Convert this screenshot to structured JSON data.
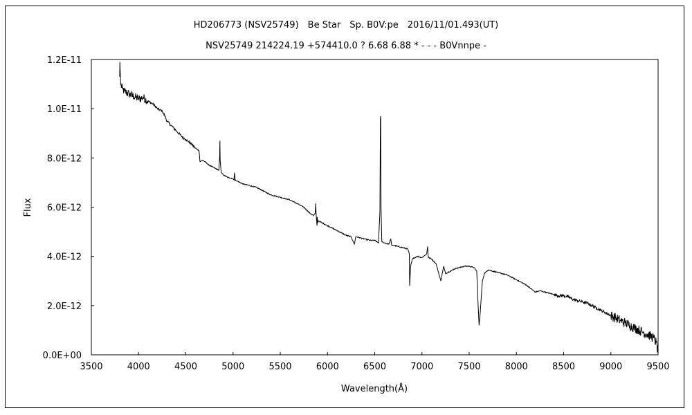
{
  "chart_data": {
    "type": "line",
    "title": "HD206773 (NSV25749)　Be Star　Sp. B0V:pe　2016/11/01.493(UT)",
    "subtitle": "NSV25749 214224.19 +574410.0 ? 6.68 6.88 * - - - B0Vnnpe -",
    "xlabel": "Wavelength(Å)",
    "ylabel": "Flux",
    "xlim": [
      3500,
      9500
    ],
    "ylim": [
      0,
      1.2e-11
    ],
    "x_ticks": [
      3500,
      4000,
      4500,
      5000,
      5500,
      6000,
      6500,
      7000,
      7500,
      8000,
      8500,
      9000,
      9500
    ],
    "x_tick_labels": [
      "3500",
      "4000",
      "4500",
      "5000",
      "5500",
      "6000",
      "6500",
      "7000",
      "7500",
      "8000",
      "8500",
      "9000",
      "9500"
    ],
    "y_ticks": [
      0,
      2e-12,
      4e-12,
      6e-12,
      8e-12,
      1e-11,
      1.2e-11
    ],
    "y_tick_labels": [
      "0.0E+00",
      "2.0E-12",
      "4.0E-12",
      "6.0E-12",
      "8.0E-12",
      "1.0E-11",
      "1.2E-11"
    ],
    "grid": false,
    "legend": "none",
    "line_color": "#000000",
    "series": [
      {
        "x": [
          3800,
          3802,
          3810,
          3830,
          3850,
          3900,
          3950,
          4000,
          4050,
          4100,
          4150,
          4200,
          4250,
          4280,
          4300,
          4350,
          4400,
          4450,
          4480,
          4500,
          4550,
          4600,
          4640,
          4650,
          4680,
          4700,
          4750,
          4800,
          4850,
          4858,
          4861,
          4864,
          4875,
          4900,
          4950,
          5000,
          5010,
          5016,
          5022,
          5050,
          5100,
          5150,
          5200,
          5250,
          5300,
          5350,
          5400,
          5450,
          5500,
          5550,
          5600,
          5650,
          5700,
          5750,
          5800,
          5850,
          5870,
          5876,
          5880,
          5889,
          5892,
          5896,
          5900,
          5950,
          6000,
          6050,
          6100,
          6150,
          6200,
          6250,
          6284,
          6300,
          6350,
          6400,
          6450,
          6500,
          6540,
          6555,
          6560,
          6563,
          6567,
          6575,
          6600,
          6650,
          6670,
          6680,
          6700,
          6750,
          6800,
          6850,
          6866,
          6870,
          6880,
          6900,
          6950,
          7000,
          7050,
          7060,
          7065,
          7070,
          7100,
          7150,
          7200,
          7230,
          7250,
          7300,
          7350,
          7400,
          7450,
          7500,
          7550,
          7580,
          7595,
          7605,
          7615,
          7640,
          7660,
          7700,
          7750,
          7800,
          7850,
          7900,
          7950,
          8000,
          8050,
          8100,
          8150,
          8200,
          8250,
          8300,
          8350,
          8400,
          8450,
          8500,
          8550,
          8600,
          8650,
          8700,
          8750,
          8800,
          8850,
          8900,
          8950,
          9000,
          9050,
          9100,
          9150,
          9200,
          9250,
          9300,
          9350,
          9400,
          9450,
          9480,
          9500
        ],
        "y": [
          1.13e-11,
          1.19e-11,
          1.1e-11,
          1.08e-11,
          1.07e-11,
          1.06e-11,
          1.05e-11,
          1.04e-11,
          1.045e-11,
          1.03e-11,
          1.02e-11,
          1e-11,
          9.9e-12,
          9.7e-12,
          9.5e-12,
          9.3e-12,
          9.1e-12,
          8.9e-12,
          8.8e-12,
          8.75e-12,
          8.6e-12,
          8.4e-12,
          8.3e-12,
          7.85e-12,
          7.9e-12,
          7.85e-12,
          7.7e-12,
          7.6e-12,
          7.5e-12,
          8e-12,
          8.7e-12,
          7.9e-12,
          7.4e-12,
          7.3e-12,
          7.2e-12,
          7.15e-12,
          7.1e-12,
          7.4e-12,
          7.1e-12,
          7.05e-12,
          6.95e-12,
          6.9e-12,
          6.85e-12,
          6.8e-12,
          6.7e-12,
          6.6e-12,
          6.5e-12,
          6.45e-12,
          6.4e-12,
          6.35e-12,
          6.3e-12,
          6.2e-12,
          6.1e-12,
          6e-12,
          5.8e-12,
          5.65e-12,
          5.75e-12,
          6.15e-12,
          5.7e-12,
          5.25e-12,
          5.6e-12,
          5.35e-12,
          5.45e-12,
          5.35e-12,
          5.25e-12,
          5.15e-12,
          5.05e-12,
          4.95e-12,
          4.85e-12,
          4.8e-12,
          4.5e-12,
          4.8e-12,
          4.75e-12,
          4.7e-12,
          4.65e-12,
          4.65e-12,
          4.55e-12,
          5.8e-12,
          9.6e-12,
          9.7e-12,
          6e-12,
          4.6e-12,
          4.55e-12,
          4.5e-12,
          4.7e-12,
          4.45e-12,
          4.45e-12,
          4.4e-12,
          4.35e-12,
          4.3e-12,
          4.1e-12,
          2.8e-12,
          3.6e-12,
          3.9e-12,
          4e-12,
          3.95e-12,
          4.1e-12,
          4.4e-12,
          4.05e-12,
          3.95e-12,
          3.9e-12,
          3.7e-12,
          3e-12,
          3.6e-12,
          3.3e-12,
          3.4e-12,
          3.5e-12,
          3.55e-12,
          3.6e-12,
          3.6e-12,
          3.55e-12,
          3.4e-12,
          2e-12,
          1.2e-12,
          1.6e-12,
          3e-12,
          3.3e-12,
          3.45e-12,
          3.4e-12,
          3.35e-12,
          3.3e-12,
          3.25e-12,
          3.15e-12,
          3.05e-12,
          2.95e-12,
          2.85e-12,
          2.7e-12,
          2.55e-12,
          2.6e-12,
          2.55e-12,
          2.5e-12,
          2.45e-12,
          2.4e-12,
          2.4e-12,
          2.35e-12,
          2.25e-12,
          2.2e-12,
          2.15e-12,
          2.1e-12,
          2e-12,
          1.9e-12,
          1.8e-12,
          1.7e-12,
          1.6e-12,
          1.5e-12,
          1.4e-12,
          1.3e-12,
          1.2e-12,
          1.1e-12,
          1e-12,
          9e-13,
          8e-13,
          7e-13,
          5e-13,
          1e-13
        ]
      }
    ]
  }
}
